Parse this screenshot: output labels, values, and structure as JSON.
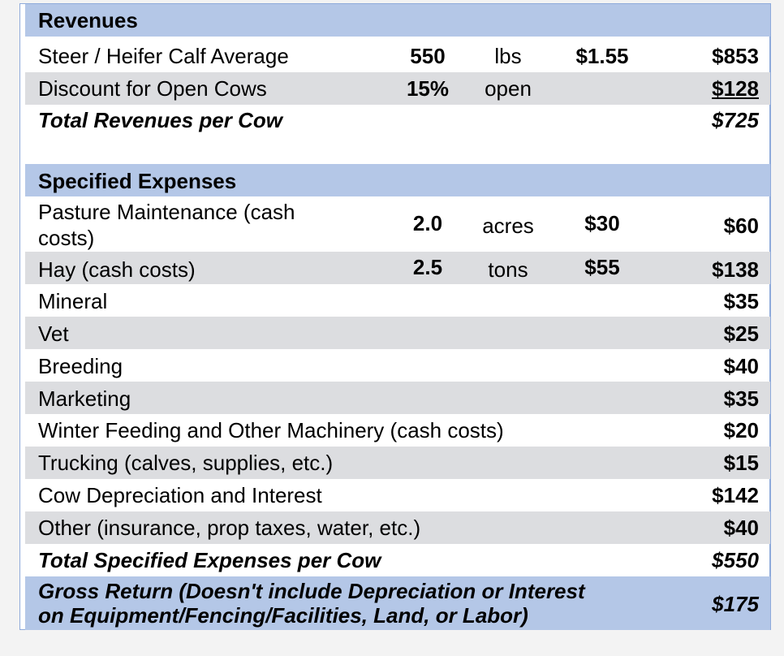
{
  "revenues": {
    "header": "Revenues",
    "rows": [
      {
        "label": "Steer / Heifer Calf Average",
        "qty": "550",
        "unit": "lbs",
        "price": "$1.55",
        "total": "$853"
      },
      {
        "label": "Discount for Open Cows",
        "qty": "15%",
        "unit": "open",
        "price": "",
        "total": "$128"
      }
    ],
    "total_label": "Total Revenues per Cow",
    "total_value": "$725"
  },
  "expenses": {
    "header": "Specified Expenses",
    "rows": [
      {
        "label_line1": "Pasture Maintenance (cash",
        "label_line2": "costs)",
        "qty": "2.0",
        "unit": "acres",
        "price": "$30",
        "total": "$60"
      },
      {
        "label": "Hay (cash costs)",
        "qty": "2.5",
        "unit": "tons",
        "price": "$55",
        "total": "$138"
      },
      {
        "label": "Mineral",
        "total": "$35"
      },
      {
        "label": "Vet",
        "total": "$25"
      },
      {
        "label": "Breeding",
        "total": "$40"
      },
      {
        "label": "Marketing",
        "total": "$35"
      },
      {
        "label": "Winter Feeding and Other Machinery (cash costs)",
        "total": "$20"
      },
      {
        "label": "Trucking (calves, supplies, etc.)",
        "total": "$15"
      },
      {
        "label": "Cow Depreciation and Interest",
        "total": "$142"
      },
      {
        "label": "Other (insurance, prop taxes, water, etc.)",
        "total": "$40"
      }
    ],
    "total_label": "Total Specified Expenses per Cow",
    "total_value": "$550"
  },
  "gross_return": {
    "label_line1": "Gross Return (Doesn't include Depreciation or Interest",
    "label_line2": "on Equipment/Fencing/Facilities, Land, or Labor)",
    "value": "$175"
  },
  "colors": {
    "header_fill": "#b4c7e7",
    "stripe_fill": "#dcdde0",
    "border": "#8eaadb"
  }
}
